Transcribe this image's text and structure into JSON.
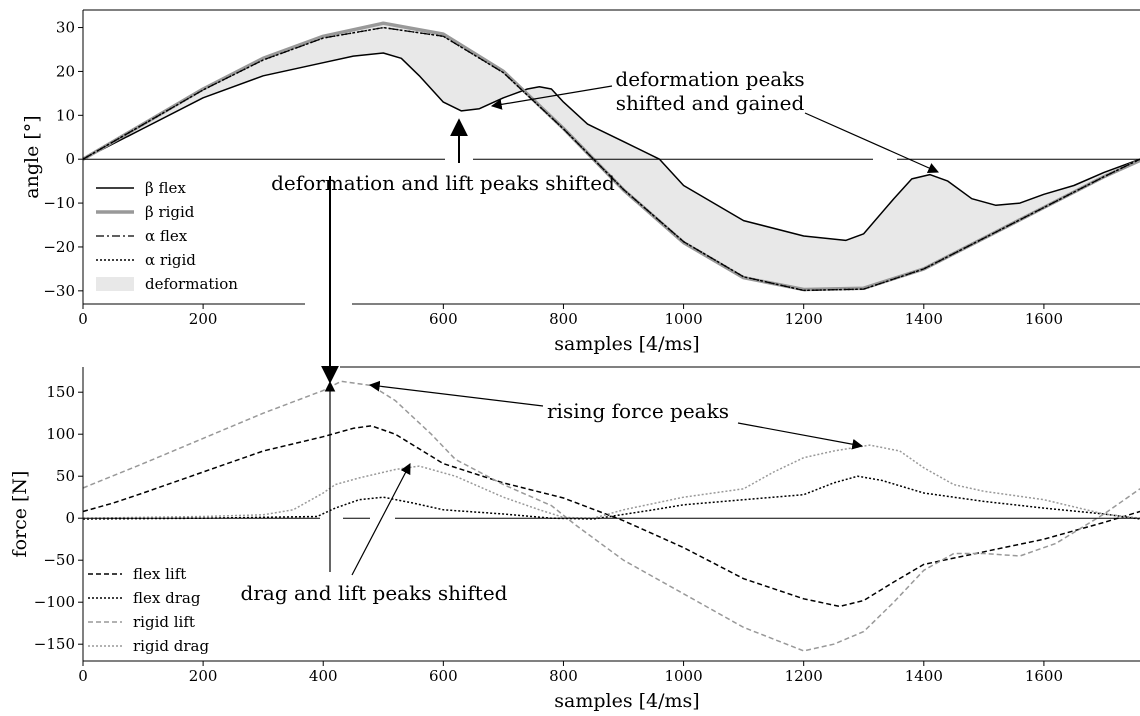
{
  "chart_data": [
    {
      "type": "line",
      "xlabel": "samples [4/ms]",
      "ylabel": "angle [°]",
      "xlim": [
        0,
        1760
      ],
      "ylim": [
        -33,
        34
      ],
      "xticks": [
        0,
        200,
        600,
        800,
        1000,
        1200,
        1400,
        1600
      ],
      "yticks": [
        30,
        20,
        10,
        0,
        -10,
        -20,
        -30
      ],
      "ytick_labels": [
        "30",
        "20",
        "10",
        "0",
        "−10",
        "−20",
        "−30"
      ],
      "legend_position": "left",
      "series": [
        {
          "name": "β flex",
          "style": "solid",
          "color": "#000000",
          "x": [
            0,
            100,
            200,
            300,
            400,
            450,
            500,
            530,
            560,
            600,
            630,
            660,
            700,
            740,
            760,
            780,
            800,
            840,
            900,
            960,
            1000,
            1100,
            1200,
            1270,
            1300,
            1350,
            1380,
            1410,
            1440,
            1480,
            1520,
            1560,
            1600,
            1650,
            1700,
            1760
          ],
          "y": [
            0,
            7,
            14,
            19,
            22,
            23.5,
            24.2,
            23,
            19,
            13,
            11,
            11.5,
            14,
            16,
            16.5,
            16,
            13,
            8,
            4,
            0,
            -6,
            -14,
            -17.5,
            -18.5,
            -17,
            -9,
            -4.5,
            -3.5,
            -5,
            -9,
            -10.5,
            -10,
            -8,
            -6,
            -3,
            0
          ]
        },
        {
          "name": "β rigid",
          "style": "solid-thick",
          "color": "#999999",
          "x": [
            0,
            100,
            200,
            300,
            400,
            500,
            600,
            700,
            800,
            900,
            1000,
            1100,
            1200,
            1300,
            1400,
            1500,
            1600,
            1700,
            1760
          ],
          "y": [
            0,
            8,
            16,
            23,
            28,
            31,
            28.5,
            20,
            7,
            -7,
            -19,
            -27,
            -29.7,
            -29.4,
            -25,
            -18,
            -11,
            -4,
            -0.3
          ]
        },
        {
          "name": "α flex",
          "style": "dashdot",
          "color": "#000000",
          "x": [
            0,
            100,
            200,
            300,
            400,
            500,
            600,
            700,
            800,
            900,
            1000,
            1100,
            1200,
            1300,
            1400,
            1500,
            1600,
            1700,
            1760
          ],
          "y": [
            0,
            7.9,
            15.8,
            22.6,
            27.6,
            30,
            28,
            19.7,
            6.9,
            -6.9,
            -18.8,
            -26.8,
            -29.9,
            -29.6,
            -25,
            -18,
            -11,
            -4,
            0
          ]
        },
        {
          "name": "α rigid",
          "style": "dotted",
          "color": "#000000",
          "x": [
            0,
            100,
            200,
            300,
            400,
            500,
            600,
            700,
            800,
            900,
            1000,
            1100,
            1200,
            1300,
            1400,
            1500,
            1600,
            1700,
            1760
          ],
          "y": [
            0,
            7.9,
            15.8,
            22.6,
            27.6,
            30,
            28,
            19.7,
            6.9,
            -6.9,
            -18.8,
            -26.8,
            -29.9,
            -29.6,
            -25,
            -18,
            -11,
            -4,
            0
          ]
        },
        {
          "name": "deformation",
          "style": "fill",
          "color": "#e8e8e8"
        }
      ],
      "annotations": [
        "deformation peaks",
        "shifted and gained",
        "deformation and lift peaks shifted"
      ]
    },
    {
      "type": "line",
      "xlabel": "samples [4/ms]",
      "ylabel": "force [N]",
      "xlim": [
        0,
        1760
      ],
      "ylim": [
        -170,
        180
      ],
      "xticks": [
        0,
        200,
        400,
        600,
        800,
        1000,
        1200,
        1400,
        1600
      ],
      "yticks": [
        150,
        100,
        50,
        0,
        -50,
        -100,
        -150
      ],
      "ytick_labels": [
        "150",
        "100",
        "50",
        "0",
        "−50",
        "−100",
        "−150"
      ],
      "legend_position": "lower-left",
      "series": [
        {
          "name": "flex lift",
          "style": "dashed",
          "color": "#000000",
          "x": [
            0,
            50,
            100,
            200,
            300,
            400,
            450,
            480,
            520,
            600,
            700,
            800,
            900,
            1000,
            1100,
            1200,
            1260,
            1300,
            1350,
            1400,
            1500,
            1600,
            1700,
            1760
          ],
          "y": [
            8,
            18,
            30,
            55,
            80,
            97,
            107,
            110,
            100,
            65,
            42,
            24,
            -3,
            -35,
            -72,
            -96,
            -105,
            -98,
            -76,
            -55,
            -40,
            -25,
            -5,
            8
          ]
        },
        {
          "name": "flex drag",
          "style": "dotted",
          "color": "#000000",
          "x": [
            0,
            200,
            390,
            420,
            460,
            500,
            550,
            600,
            700,
            780,
            850,
            950,
            1000,
            1100,
            1200,
            1250,
            1290,
            1330,
            1400,
            1500,
            1600,
            1700,
            1760
          ],
          "y": [
            -1,
            0,
            2,
            12,
            22,
            25,
            18,
            10,
            5,
            0,
            -1,
            10,
            16,
            22,
            28,
            42,
            50,
            45,
            30,
            20,
            12,
            5,
            -1
          ]
        },
        {
          "name": "rigid lift",
          "style": "dashed",
          "color": "#999999",
          "x": [
            0,
            100,
            200,
            300,
            400,
            430,
            480,
            520,
            580,
            620,
            700,
            780,
            820,
            900,
            1000,
            1100,
            1200,
            1250,
            1300,
            1350,
            1400,
            1450,
            1500,
            1560,
            1620,
            1700,
            1760
          ],
          "y": [
            36,
            65,
            95,
            125,
            152,
            163,
            158,
            140,
            100,
            70,
            40,
            15,
            -8,
            -50,
            -90,
            -130,
            -158,
            -150,
            -135,
            -100,
            -62,
            -42,
            -42,
            -45,
            -30,
            5,
            35
          ]
        },
        {
          "name": "rigid drag",
          "style": "dotted",
          "color": "#999999",
          "x": [
            0,
            200,
            300,
            350,
            400,
            420,
            460,
            520,
            560,
            620,
            700,
            760,
            800,
            850,
            900,
            1000,
            1100,
            1150,
            1200,
            1250,
            1310,
            1360,
            1400,
            1450,
            1500,
            1600,
            1700,
            1760
          ],
          "y": [
            0,
            2,
            4,
            10,
            30,
            40,
            48,
            58,
            62,
            50,
            25,
            10,
            1,
            0,
            10,
            25,
            35,
            55,
            72,
            80,
            87,
            80,
            60,
            40,
            32,
            22,
            5,
            0
          ]
        }
      ],
      "annotations": [
        "rising force peaks",
        "drag and lift peaks shifted"
      ]
    }
  ]
}
